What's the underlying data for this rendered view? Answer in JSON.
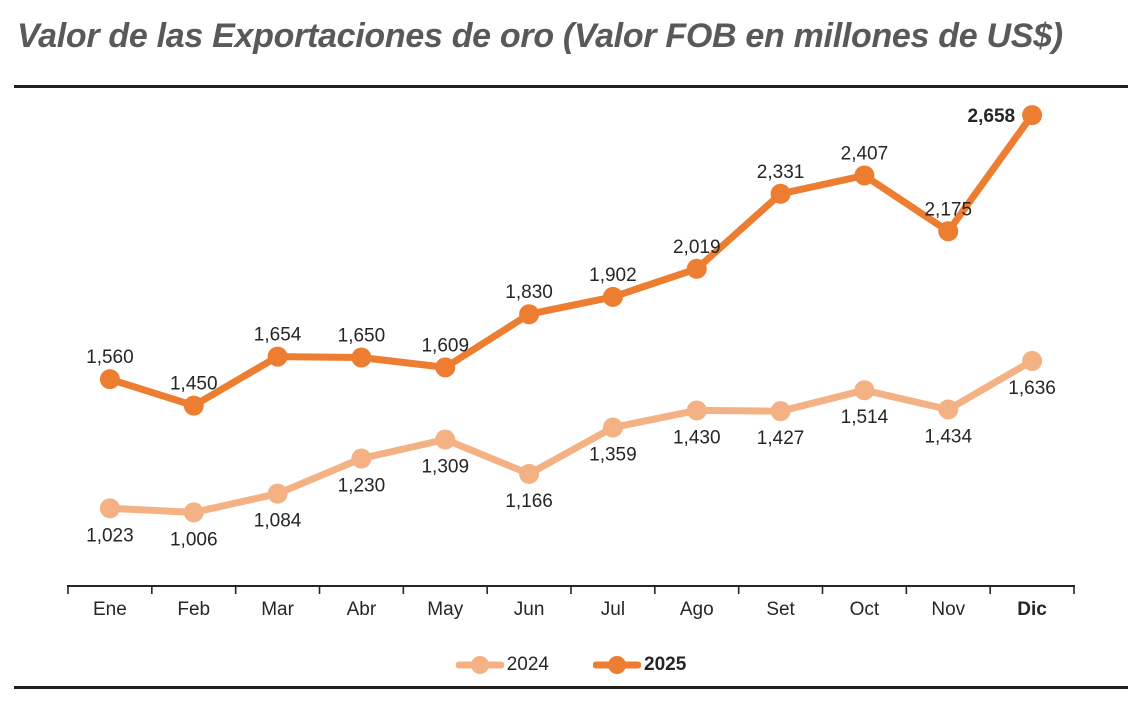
{
  "header": {
    "title": "Valor de las Exportaciones de oro (Valor FOB en millones de US$)",
    "title_color": "#595959",
    "rule_color": "#1f1f1f"
  },
  "chart_data": {
    "type": "line",
    "title": "Valor de las Exportaciones de oro (Valor FOB en millones de US$)",
    "categories": [
      "Ene",
      "Feb",
      "Mar",
      "Abr",
      "May",
      "Jun",
      "Jul",
      "Ago",
      "Set",
      "Oct",
      "Nov",
      "Dic"
    ],
    "series": [
      {
        "name": "2024",
        "color": "#F4B183",
        "values": [
          1023,
          1006,
          1084,
          1230,
          1309,
          1166,
          1359,
          1430,
          1427,
          1514,
          1434,
          1636
        ],
        "label_position": "below",
        "last_label_bold": false,
        "last_label_placement": "default",
        "legend_bold": false
      },
      {
        "name": "2025",
        "color": "#ED7D31",
        "values": [
          1560,
          1450,
          1654,
          1650,
          1609,
          1830,
          1902,
          2019,
          2331,
          2407,
          2175,
          2658
        ],
        "label_position": "above",
        "last_label_bold": true,
        "last_label_placement": "left",
        "legend_bold": true
      }
    ],
    "xlabel": "",
    "ylabel": "",
    "ylim": [
      700,
      2750
    ],
    "grid": false,
    "y_axis_visible": false,
    "legend_position": "bottom",
    "last_category_bold": true,
    "number_format": "thousands-comma",
    "axis_color": "#262626",
    "label_color": "#262626",
    "label_font_size": 19,
    "tick_font_size": 19
  }
}
